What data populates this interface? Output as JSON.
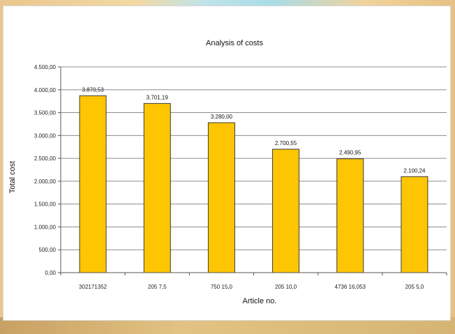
{
  "chart_data": {
    "type": "bar",
    "title": "Analysis of costs",
    "xlabel": "Article no.",
    "ylabel": "Total cost",
    "categories": [
      "302171352",
      "205 7,5",
      "750 15,0",
      "205 10,0",
      "4736 16,053",
      "205 5,0"
    ],
    "values": [
      3870.53,
      3701.19,
      3280.0,
      2700.55,
      2490.95,
      2100.24
    ],
    "value_labels": [
      "3.870,53",
      "3.701,19",
      "3.280,00",
      "2.700,55",
      "2.490,95",
      "2.100,24"
    ],
    "ylim": [
      0,
      4500
    ],
    "yticks": [
      0,
      500,
      1000,
      1500,
      2000,
      2500,
      3000,
      3500,
      4000,
      4500
    ],
    "ytick_labels": [
      "0,00",
      "500,00",
      "1.000,00",
      "1.500,00",
      "2.000,00",
      "2.500,00",
      "3.000,00",
      "3.500,00",
      "4.000,00",
      "4.500,00"
    ],
    "grid": true,
    "legend": "none",
    "colors": {
      "bar_fill": "#fec503",
      "bar_stroke": "#3a3a3a",
      "grid": "#8c8c8c",
      "axis": "#555555"
    }
  }
}
